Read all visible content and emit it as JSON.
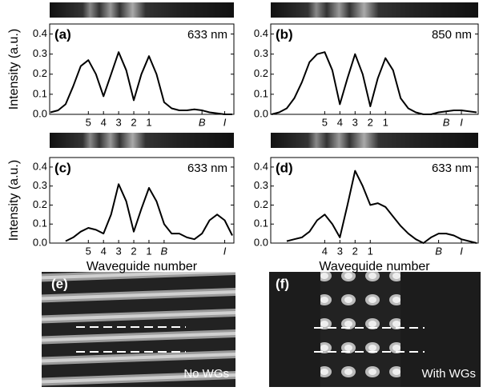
{
  "chart_data": [
    {
      "type": "line",
      "panel": "(a)",
      "annotation": "633 nm",
      "ylabel": "Intensity (a.u.)",
      "color": "#000000",
      "categories": [
        null,
        null,
        null,
        null,
        null,
        "5",
        null,
        "4",
        null,
        "3",
        null,
        "2",
        null,
        "1",
        null,
        null,
        null,
        null,
        null,
        null,
        "B",
        null,
        null,
        "I",
        null
      ],
      "values": [
        0.01,
        0.02,
        0.05,
        0.14,
        0.24,
        0.27,
        0.2,
        0.09,
        0.2,
        0.31,
        0.22,
        0.07,
        0.2,
        0.29,
        0.2,
        0.06,
        0.03,
        0.02,
        0.02,
        0.025,
        0.02,
        0.01,
        0.005,
        0.0,
        0.0
      ],
      "ylim": [
        0,
        0.45
      ],
      "yticks": [
        {
          "value": 0,
          "label": "0.0"
        },
        0.1,
        0.2,
        0.3,
        0.4
      ]
    },
    {
      "type": "line",
      "panel": "(b)",
      "annotation": "850 nm",
      "color": "#000000",
      "categories": [
        null,
        null,
        null,
        null,
        null,
        null,
        null,
        "5",
        null,
        "4",
        null,
        "3",
        null,
        "2",
        null,
        "1",
        null,
        null,
        null,
        null,
        null,
        null,
        null,
        "B",
        null,
        "I",
        null,
        null
      ],
      "values": [
        0.0,
        0.01,
        0.03,
        0.08,
        0.16,
        0.26,
        0.3,
        0.31,
        0.22,
        0.05,
        0.18,
        0.3,
        0.2,
        0.04,
        0.18,
        0.28,
        0.22,
        0.08,
        0.03,
        0.01,
        0.0,
        0.0,
        0.01,
        0.015,
        0.02,
        0.02,
        0.015,
        0.01
      ],
      "ylim": [
        0,
        0.45
      ],
      "yticks": [
        {
          "value": 0,
          "label": "0.0"
        },
        0.1,
        0.2,
        0.3,
        0.4
      ]
    },
    {
      "type": "line",
      "panel": "(c)",
      "annotation": "633 nm",
      "ylabel": "Intensity (a.u.)",
      "xlabel": "Waveguide number",
      "color": "#000000",
      "categories": [
        null,
        null,
        null,
        null,
        null,
        "5",
        null,
        "4",
        null,
        "3",
        null,
        "2",
        null,
        "1",
        null,
        "B",
        null,
        null,
        null,
        null,
        null,
        null,
        null,
        "I",
        null
      ],
      "values": [
        null,
        null,
        0.01,
        0.03,
        0.06,
        0.08,
        0.07,
        0.05,
        0.15,
        0.31,
        0.22,
        0.06,
        0.18,
        0.29,
        0.22,
        0.1,
        0.05,
        0.05,
        0.03,
        0.02,
        0.05,
        0.12,
        0.15,
        0.12,
        0.04
      ],
      "ylim": [
        0,
        0.45
      ],
      "yticks": [
        {
          "value": 0,
          "label": "0.0"
        },
        0.1,
        0.2,
        0.3,
        0.4
      ]
    },
    {
      "type": "line",
      "panel": "(d)",
      "annotation": "633 nm",
      "xlabel": "Waveguide number",
      "color": "#000000",
      "categories": [
        null,
        null,
        null,
        null,
        null,
        null,
        null,
        "4",
        null,
        "3",
        null,
        "2",
        null,
        "1",
        null,
        null,
        null,
        null,
        null,
        null,
        null,
        null,
        "B",
        null,
        null,
        "I",
        null,
        null
      ],
      "values": [
        null,
        null,
        0.01,
        0.02,
        0.03,
        0.06,
        0.12,
        0.15,
        0.1,
        0.03,
        0.2,
        0.38,
        0.3,
        0.2,
        0.21,
        0.19,
        0.14,
        0.09,
        0.05,
        0.02,
        0.0,
        0.03,
        0.05,
        0.05,
        0.04,
        0.02,
        0.01,
        0.0
      ],
      "ylim": [
        0,
        0.45
      ],
      "yticks": [
        {
          "value": 0,
          "label": "0.0"
        },
        0.1,
        0.2,
        0.3,
        0.4
      ]
    }
  ],
  "images": [
    {
      "label": "(e)",
      "caption": "No WGs"
    },
    {
      "label": "(f)",
      "caption": "With WGs"
    }
  ]
}
